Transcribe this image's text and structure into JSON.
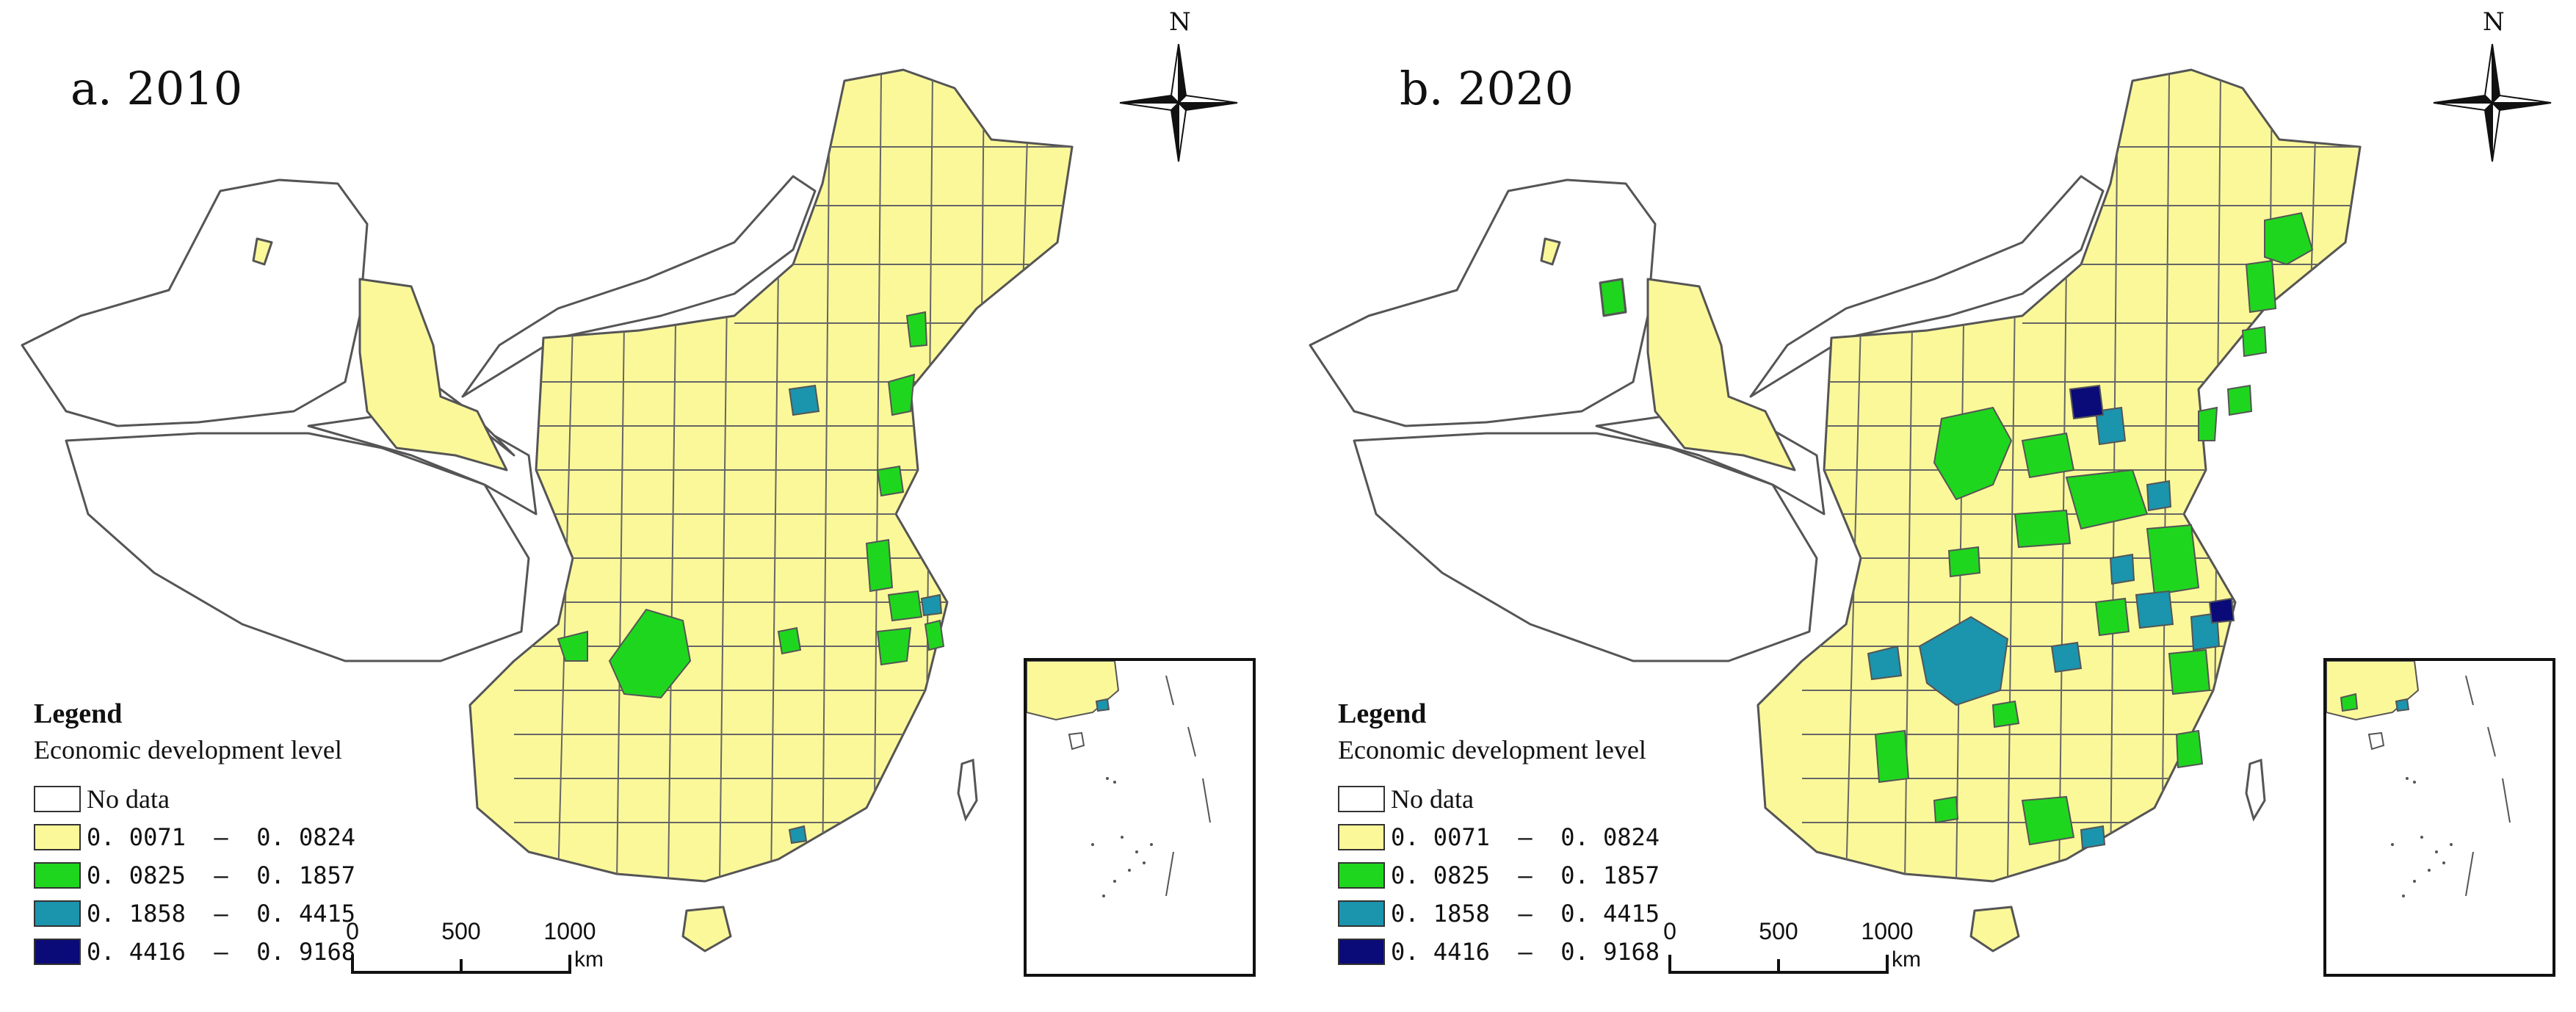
{
  "panels": [
    {
      "title": "a. 2010",
      "north_label": "N",
      "legend": {
        "heading": "Legend",
        "subtitle": "Economic development level",
        "classes": [
          {
            "label": "No data",
            "color": "#ffffff"
          },
          {
            "label": "0. 0071  –  0. 0824",
            "color": "#fbf89a"
          },
          {
            "label": "0. 0825  –  0. 1857",
            "color": "#1fd61f"
          },
          {
            "label": "0. 1858  –  0. 4415",
            "color": "#1b94ad"
          },
          {
            "label": "0. 4416  –  0. 9168",
            "color": "#0a0a78"
          }
        ]
      },
      "scale_bar": {
        "ticks": [
          "0",
          "500",
          "1000"
        ],
        "unit": "km"
      }
    },
    {
      "title": "b. 2020",
      "north_label": "N",
      "legend": {
        "heading": "Legend",
        "subtitle": "Economic development level",
        "classes": [
          {
            "label": "No data",
            "color": "#ffffff"
          },
          {
            "label": "0. 0071  –  0. 0824",
            "color": "#fbf89a"
          },
          {
            "label": "0. 0825  –  0. 1857",
            "color": "#1fd61f"
          },
          {
            "label": "0. 1858  –  0. 4415",
            "color": "#1b94ad"
          },
          {
            "label": "0. 4416  –  0. 9168",
            "color": "#0a0a78"
          }
        ]
      },
      "scale_bar": {
        "ticks": [
          "0",
          "500",
          "1000"
        ],
        "unit": "km"
      }
    }
  ],
  "colors": {
    "no_data": "#ffffff",
    "class1": "#fbf89a",
    "class2": "#1fd61f",
    "class3": "#1b94ad",
    "class4": "#0a0a78",
    "boundary": "#555555"
  }
}
